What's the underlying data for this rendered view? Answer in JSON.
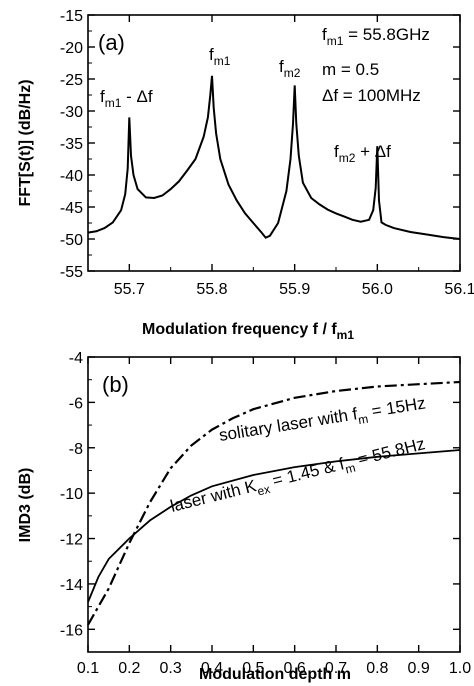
{
  "chart_data": [
    {
      "type": "line",
      "panel_label": "(a)",
      "xlabel_main": "Modulation frequency  f / f",
      "xlabel_sub": "m1",
      "ylabel": "FFT[S(t)]  (dB/Hz)",
      "xlim": [
        55.65,
        56.1
      ],
      "ylim": [
        -55,
        -15
      ],
      "xticks": [
        "55.7",
        "55.8",
        "55.9",
        "56.0",
        "56.1"
      ],
      "yticks": [
        "-15",
        "-20",
        "-25",
        "-30",
        "-35",
        "-40",
        "-45",
        "-50",
        "-55"
      ],
      "peak_labels": [
        {
          "base": "f",
          "sub": "m1",
          "rest": " - Δf"
        },
        {
          "base": "f",
          "sub": "m1",
          "rest": ""
        },
        {
          "base": "f",
          "sub": "m2",
          "rest": ""
        },
        {
          "base": "f",
          "sub": "m2",
          "rest": " + Δf"
        }
      ],
      "params": [
        {
          "base": "f",
          "sub": "m1",
          "rest": " = 55.8GHz"
        },
        {
          "base": "m = 0.5",
          "sub": "",
          "rest": ""
        },
        {
          "base": "Δf = 100MHz",
          "sub": "",
          "rest": ""
        }
      ],
      "series": [
        {
          "x": [
            55.65,
            55.66,
            55.67,
            55.68,
            55.69,
            55.695,
            55.698,
            55.7,
            55.702,
            55.705,
            55.71,
            55.72,
            55.73,
            55.74,
            55.75,
            55.76,
            55.77,
            55.78,
            55.79,
            55.795,
            55.798,
            55.8,
            55.802,
            55.805,
            55.81,
            55.82,
            55.83,
            55.84,
            55.85,
            55.86,
            55.865,
            55.87,
            55.88,
            55.89,
            55.895,
            55.898,
            55.9,
            55.902,
            55.905,
            55.91,
            55.92,
            55.93,
            55.94,
            55.95,
            55.96,
            55.97,
            55.98,
            55.99,
            55.995,
            55.998,
            56.0,
            56.002,
            56.005,
            56.01,
            56.02,
            56.04,
            56.06,
            56.08,
            56.1
          ],
          "y": [
            -49.0,
            -48.8,
            -48.3,
            -47.4,
            -45.5,
            -43.0,
            -39.0,
            -31.0,
            -37.0,
            -40.0,
            -42.2,
            -43.5,
            -43.6,
            -43.2,
            -42.2,
            -41.0,
            -39.3,
            -37.5,
            -34.0,
            -31.0,
            -27.5,
            -24.5,
            -29.5,
            -33.5,
            -37.5,
            -41.5,
            -44.0,
            -46.0,
            -47.5,
            -49.0,
            -49.8,
            -49.5,
            -47.5,
            -42.5,
            -37.5,
            -32.0,
            -26.0,
            -32.0,
            -37.0,
            -41.2,
            -43.6,
            -44.6,
            -45.4,
            -46.0,
            -46.5,
            -47.0,
            -47.3,
            -47.0,
            -45.5,
            -42.0,
            -35.5,
            -44.0,
            -47.4,
            -47.8,
            -48.3,
            -48.9,
            -49.3,
            -49.7,
            -50.0
          ]
        }
      ]
    },
    {
      "type": "line",
      "panel_label": "(b)",
      "xlabel": "Modulation depth  m",
      "ylabel": "IMD3 (dB)",
      "xlim": [
        0.1,
        1.0
      ],
      "ylim": [
        -17,
        -4
      ],
      "xticks": [
        "0.1",
        "0.2",
        "0.3",
        "0.4",
        "0.5",
        "0.6",
        "0.7",
        "0.8",
        "0.9",
        "1.0"
      ],
      "yticks": [
        "-4",
        "-6",
        "-8",
        "-10",
        "-12",
        "-14",
        "-16"
      ],
      "series": [
        {
          "label_parts": {
            "a": "solitary laser with f",
            "a_sub": "m",
            "b": " = 15Hz",
            "b_sub": "",
            "c": ""
          },
          "style": "dashdot",
          "x": [
            0.1,
            0.15,
            0.2,
            0.25,
            0.3,
            0.35,
            0.4,
            0.45,
            0.5,
            0.6,
            0.7,
            0.8,
            0.9,
            1.0
          ],
          "y": [
            -15.8,
            -14.2,
            -12.2,
            -10.4,
            -8.9,
            -7.9,
            -7.2,
            -6.7,
            -6.3,
            -5.8,
            -5.5,
            -5.3,
            -5.2,
            -5.1
          ]
        },
        {
          "label_parts": {
            "a": "laser with K",
            "a_sub": "ex",
            "b": " = 1.45 & f",
            "b_sub": "m",
            "c": " = 55.8Hz"
          },
          "style": "solid",
          "x": [
            0.1,
            0.125,
            0.15,
            0.2,
            0.25,
            0.3,
            0.35,
            0.4,
            0.5,
            0.6,
            0.7,
            0.8,
            0.9,
            1.0
          ],
          "y": [
            -14.8,
            -13.7,
            -12.9,
            -12.0,
            -11.2,
            -10.6,
            -10.1,
            -9.7,
            -9.2,
            -8.85,
            -8.6,
            -8.4,
            -8.25,
            -8.1
          ]
        }
      ]
    }
  ]
}
